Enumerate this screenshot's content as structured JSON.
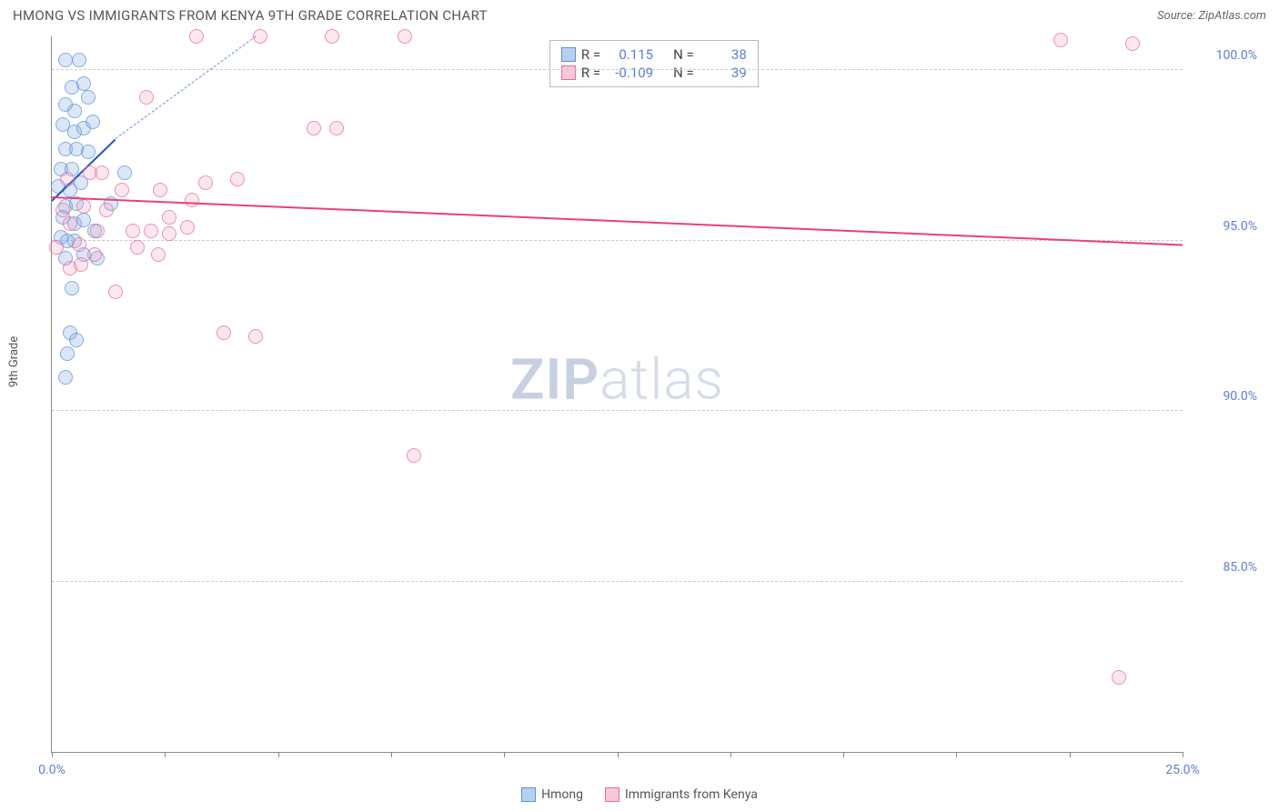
{
  "title": "HMONG VS IMMIGRANTS FROM KENYA 9TH GRADE CORRELATION CHART",
  "source": "Source: ZipAtlas.com",
  "ylabel": "9th Grade",
  "watermark_bold": "ZIP",
  "watermark_light": "atlas",
  "chart": {
    "type": "scatter",
    "xlim": [
      0,
      25
    ],
    "ylim": [
      80,
      101
    ],
    "xticks": [
      0,
      2.5,
      5,
      7.5,
      10,
      12.5,
      15,
      17.5,
      20,
      22.5,
      25
    ],
    "xtick_labels": {
      "0": "0.0%",
      "25": "25.0%"
    },
    "yticks": [
      85,
      90,
      95,
      100
    ],
    "ytick_labels": {
      "85": "85.0%",
      "90": "90.0%",
      "95": "95.0%",
      "100": "100.0%"
    },
    "grid_color": "#cccccc",
    "axis_color": "#888888",
    "tick_label_color": "#5b7fd1",
    "background": "#ffffff",
    "marker_radius": 8,
    "series": [
      {
        "name": "Hmong",
        "swatch_fill": "#b8d0f0",
        "swatch_stroke": "#5b8fd8",
        "marker_fill": "rgba(120,165,225,0.35)",
        "marker_stroke": "#5b8fd8",
        "trend_color": "#2456c9",
        "trend_dash_color": "#6a8fd8",
        "r_label": "R =",
        "r_value": "0.115",
        "n_label": "N =",
        "n_value": "38",
        "trend_solid": {
          "x1": 0,
          "y1": 96.2,
          "x2": 1.4,
          "y2": 98.0
        },
        "trend_dash": {
          "x1": 1.4,
          "y1": 98.0,
          "x2": 4.5,
          "y2": 101.0
        },
        "points": [
          {
            "x": 0.3,
            "y": 100.3
          },
          {
            "x": 0.6,
            "y": 100.3
          },
          {
            "x": 0.45,
            "y": 99.5
          },
          {
            "x": 0.7,
            "y": 99.6
          },
          {
            "x": 0.3,
            "y": 99.0
          },
          {
            "x": 0.5,
            "y": 98.8
          },
          {
            "x": 0.8,
            "y": 99.2
          },
          {
            "x": 0.25,
            "y": 98.4
          },
          {
            "x": 0.5,
            "y": 98.2
          },
          {
            "x": 0.7,
            "y": 98.3
          },
          {
            "x": 0.9,
            "y": 98.5
          },
          {
            "x": 0.3,
            "y": 97.7
          },
          {
            "x": 0.55,
            "y": 97.7
          },
          {
            "x": 0.8,
            "y": 97.6
          },
          {
            "x": 0.2,
            "y": 97.1
          },
          {
            "x": 0.45,
            "y": 97.1
          },
          {
            "x": 0.15,
            "y": 96.6
          },
          {
            "x": 0.4,
            "y": 96.5
          },
          {
            "x": 0.65,
            "y": 96.7
          },
          {
            "x": 0.3,
            "y": 96.0
          },
          {
            "x": 0.55,
            "y": 96.1
          },
          {
            "x": 1.6,
            "y": 97.0
          },
          {
            "x": 1.3,
            "y": 96.1
          },
          {
            "x": 0.25,
            "y": 95.7
          },
          {
            "x": 0.5,
            "y": 95.5
          },
          {
            "x": 0.7,
            "y": 95.6
          },
          {
            "x": 0.2,
            "y": 95.1
          },
          {
            "x": 0.5,
            "y": 95.0
          },
          {
            "x": 0.95,
            "y": 95.3
          },
          {
            "x": 0.3,
            "y": 94.5
          },
          {
            "x": 0.7,
            "y": 94.6
          },
          {
            "x": 1.0,
            "y": 94.5
          },
          {
            "x": 0.45,
            "y": 93.6
          },
          {
            "x": 0.4,
            "y": 92.3
          },
          {
            "x": 0.55,
            "y": 92.1
          },
          {
            "x": 0.35,
            "y": 91.7
          },
          {
            "x": 0.3,
            "y": 91.0
          },
          {
            "x": 0.35,
            "y": 95.0
          }
        ]
      },
      {
        "name": "Immigrants from Kenya",
        "swatch_fill": "#f7c8d6",
        "swatch_stroke": "#e86b94",
        "marker_fill": "rgba(240,150,180,0.3)",
        "marker_stroke": "#e86b94",
        "trend_color": "#e8407c",
        "r_label": "R =",
        "r_value": "-0.109",
        "n_label": "N =",
        "n_value": "39",
        "trend_solid": {
          "x1": 0,
          "y1": 96.3,
          "x2": 25,
          "y2": 94.9
        },
        "points": [
          {
            "x": 3.2,
            "y": 101.0
          },
          {
            "x": 4.6,
            "y": 101.0
          },
          {
            "x": 6.2,
            "y": 101.0
          },
          {
            "x": 7.8,
            "y": 101.0
          },
          {
            "x": 22.3,
            "y": 100.9
          },
          {
            "x": 23.9,
            "y": 100.8
          },
          {
            "x": 2.1,
            "y": 99.2
          },
          {
            "x": 5.8,
            "y": 98.3
          },
          {
            "x": 6.3,
            "y": 98.3
          },
          {
            "x": 4.1,
            "y": 96.8
          },
          {
            "x": 3.4,
            "y": 96.7
          },
          {
            "x": 2.4,
            "y": 96.5
          },
          {
            "x": 3.1,
            "y": 96.2
          },
          {
            "x": 2.6,
            "y": 95.7
          },
          {
            "x": 1.2,
            "y": 95.9
          },
          {
            "x": 1.0,
            "y": 95.3
          },
          {
            "x": 1.8,
            "y": 95.3
          },
          {
            "x": 2.2,
            "y": 95.3
          },
          {
            "x": 2.6,
            "y": 95.2
          },
          {
            "x": 3.0,
            "y": 95.4
          },
          {
            "x": 1.4,
            "y": 93.5
          },
          {
            "x": 3.8,
            "y": 92.3
          },
          {
            "x": 4.5,
            "y": 92.2
          },
          {
            "x": 8.0,
            "y": 88.7
          },
          {
            "x": 23.6,
            "y": 82.2
          },
          {
            "x": 0.7,
            "y": 96.0
          },
          {
            "x": 0.4,
            "y": 95.5
          },
          {
            "x": 0.6,
            "y": 94.9
          },
          {
            "x": 0.95,
            "y": 94.6
          },
          {
            "x": 0.4,
            "y": 94.2
          },
          {
            "x": 0.65,
            "y": 94.3
          },
          {
            "x": 0.25,
            "y": 95.9
          },
          {
            "x": 1.55,
            "y": 96.5
          },
          {
            "x": 1.9,
            "y": 94.8
          },
          {
            "x": 2.35,
            "y": 94.6
          },
          {
            "x": 0.35,
            "y": 96.8
          },
          {
            "x": 0.85,
            "y": 97.0
          },
          {
            "x": 1.1,
            "y": 97.0
          },
          {
            "x": 0.1,
            "y": 94.8
          }
        ]
      }
    ]
  },
  "legend": {
    "items": [
      {
        "label": "Hmong"
      },
      {
        "label": "Immigrants from Kenya"
      }
    ]
  }
}
